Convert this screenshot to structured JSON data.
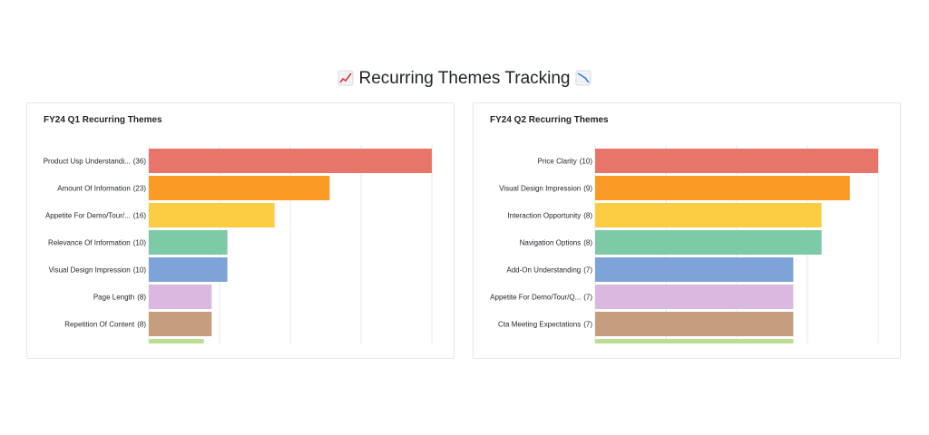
{
  "header": {
    "title": "Recurring Themes Tracking",
    "icon_left": "chart-increasing-icon",
    "icon_right": "chart-decreasing-icon"
  },
  "chart_data": [
    {
      "type": "bar",
      "orientation": "horizontal",
      "title": "FY24 Q1 Recurring Themes",
      "categories": [
        "Product Usp Understandi...",
        "Amount Of Information",
        "Appetite For Demo/Tour/...",
        "Relevance Of Information",
        "Visual Design Impression",
        "Page Length",
        "Repetition Of Content",
        ""
      ],
      "values": [
        36,
        23,
        16,
        10,
        10,
        8,
        8,
        7
      ],
      "value_labels": [
        "(36)",
        "(23)",
        "(16)",
        "(10)",
        "(10)",
        "(8)",
        "(8)",
        ""
      ],
      "xlim": [
        0,
        36
      ],
      "grid": true,
      "colors": [
        "#e8756a",
        "#f99b25",
        "#fccd43",
        "#7ccba6",
        "#7ea3d8",
        "#dbb8e0",
        "#c49e7f",
        "#b9e090"
      ]
    },
    {
      "type": "bar",
      "orientation": "horizontal",
      "title": "FY24 Q2 Recurring Themes",
      "categories": [
        "Price Clarity",
        "Visual Design Impression",
        "Interaction Opportunity",
        "Navigation Options",
        "Add-On Understanding",
        "Appetite For Demo/Tour/Q...",
        "Cta Meeting Expectations",
        ""
      ],
      "values": [
        10,
        9,
        8,
        8,
        7,
        7,
        7,
        7
      ],
      "value_labels": [
        "(10)",
        "(9)",
        "(8)",
        "(8)",
        "(7)",
        "(7)",
        "(7)",
        ""
      ],
      "xlim": [
        0,
        10
      ],
      "grid": true,
      "colors": [
        "#e8756a",
        "#f99b25",
        "#fccd43",
        "#7ccba6",
        "#7ea3d8",
        "#dbb8e0",
        "#c49e7f",
        "#b9e090"
      ]
    }
  ]
}
